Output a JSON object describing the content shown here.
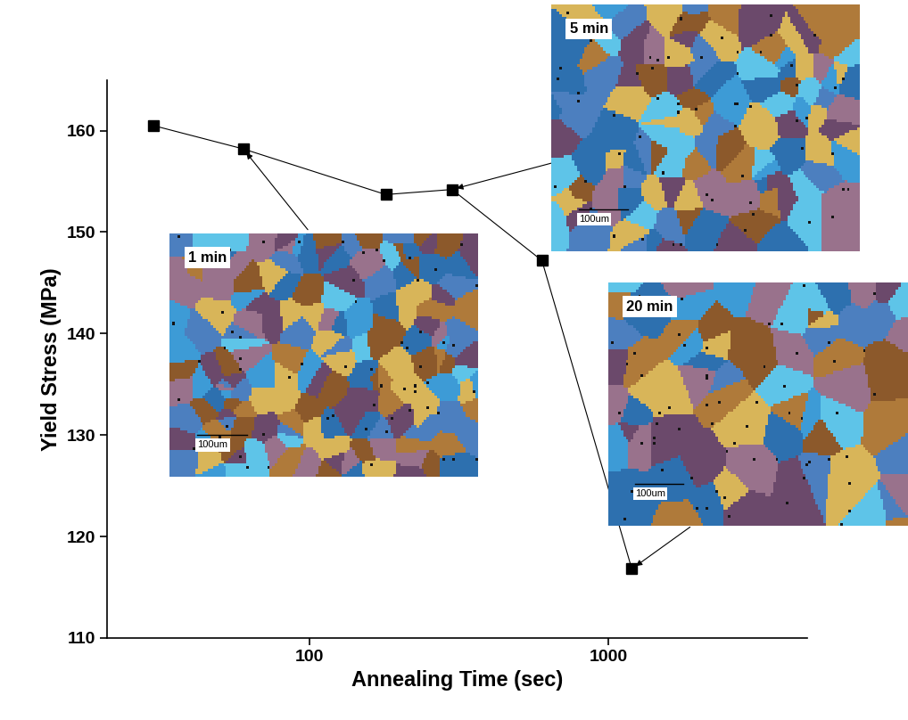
{
  "chart_data": {
    "type": "line",
    "x": [
      30,
      60,
      180,
      300,
      600,
      1200
    ],
    "values": [
      160.5,
      158.2,
      153.7,
      154.2,
      147.2,
      116.8
    ],
    "color": "#000000",
    "marker": "square",
    "line_style": "solid",
    "log": "x",
    "grid": false,
    "xlim": [
      21,
      4640
    ],
    "xticks": [
      100,
      1000
    ],
    "ylim": [
      110,
      165
    ],
    "yticks": [
      110,
      120,
      130,
      140,
      150,
      160
    ],
    "xlabel": "Annealing Time (sec)",
    "ylabel": "Yield Stress (MPa)",
    "annotations": [
      {
        "text": "1 min",
        "x": 60,
        "y": 158.2,
        "scale_label": "100um"
      },
      {
        "text": "5 min",
        "x": 300,
        "y": 154.2,
        "scale_label": "100um"
      },
      {
        "text": "20 min",
        "x": 1200,
        "y": 116.8,
        "scale_label": "100um"
      }
    ]
  }
}
